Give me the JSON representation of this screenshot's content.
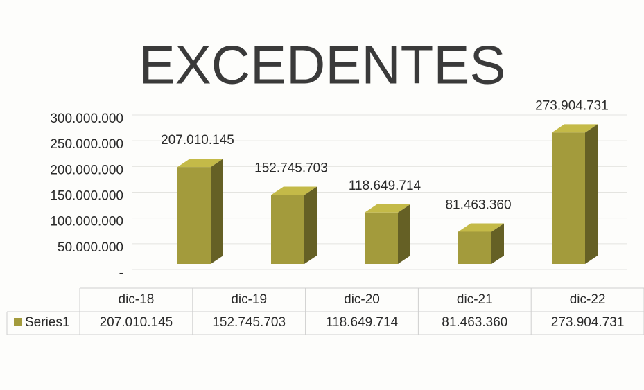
{
  "chart_data": {
    "type": "bar3d",
    "title": "EXCEDENTES",
    "categories": [
      "dic-18",
      "dic-19",
      "dic-20",
      "dic-21",
      "dic-22"
    ],
    "series": [
      {
        "name": "Series1",
        "color": "#a39b3c",
        "values": [
          207010145,
          152745703,
          118649714,
          81463360,
          273904731
        ],
        "value_labels": [
          "207.010.145",
          "152.745.703",
          "118.649.714",
          "81.463.360",
          "273.904.731"
        ]
      }
    ],
    "ylim": [
      0,
      300000000
    ],
    "yticks": [
      {
        "value": 0,
        "label": "-"
      },
      {
        "value": 50000000,
        "label": "50.000.000"
      },
      {
        "value": 100000000,
        "label": "100.000.000"
      },
      {
        "value": 150000000,
        "label": "150.000.000"
      },
      {
        "value": 200000000,
        "label": "200.000.000"
      },
      {
        "value": 250000000,
        "label": "250.000.000"
      },
      {
        "value": 300000000,
        "label": "300.000.000"
      }
    ],
    "grid": true,
    "data_table": true
  }
}
